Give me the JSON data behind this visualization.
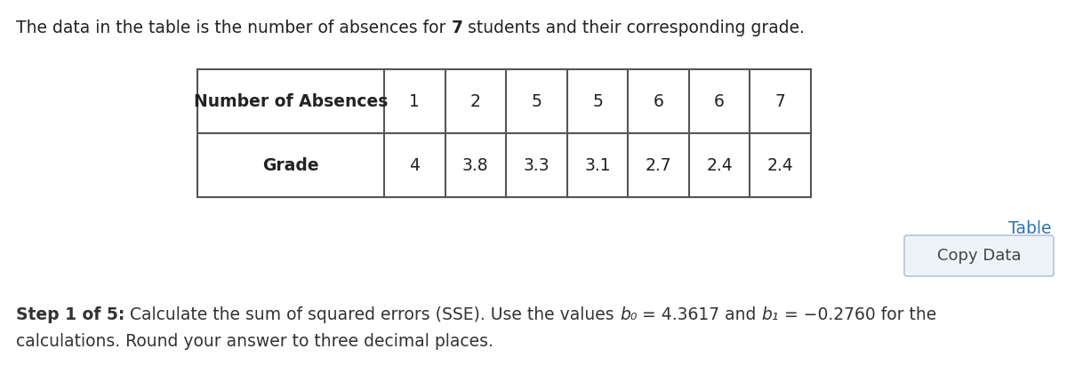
{
  "title_text1": "The data in the table is the number of absences for ",
  "title_bold_num": "7",
  "title_text2": " students and their corresponding grade.",
  "row1_header": "Number of Absences",
  "row1_values": [
    "1",
    "2",
    "5",
    "5",
    "6",
    "6",
    "7"
  ],
  "row2_header": "Grade",
  "row2_values": [
    "4",
    "3.8",
    "3.3",
    "3.1",
    "2.7",
    "2.4",
    "2.4"
  ],
  "table_link_text": "Table",
  "table_link_color": "#2E75B6",
  "copy_button_text": "Copy Data",
  "copy_button_text_color": "#444444",
  "copy_button_bg": "#EEF3F8",
  "copy_button_border": "#aabbd0",
  "step_bold": "Step 1 of 5:",
  "step_normal": " Calculate the sum of squared errors (SSE). Use the values ",
  "step_b0": "b₀",
  "step_eq1": " = 4.3617 and ",
  "step_b1": "b₁",
  "step_eq2": " = −0.2760 for the",
  "step_line2": "calculations. Round your answer to three decimal places.",
  "bg_color": "#ffffff",
  "border_color": "#555555",
  "text_color": "#222222",
  "step_text_color": "#333333",
  "fontsize": 13.5,
  "table_fontsize": 13.5
}
